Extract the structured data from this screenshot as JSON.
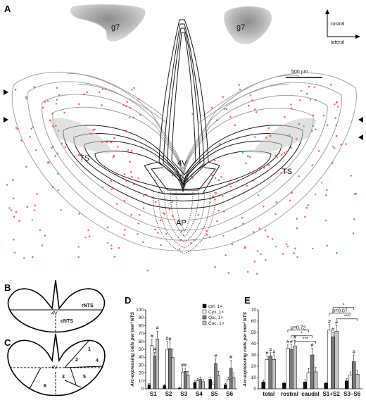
{
  "panel_a": {
    "label": "A",
    "g7_left": "g7",
    "g7_right": "g7",
    "rostral": "rostral",
    "lateral": "lateral",
    "scale_bar": "500 µm",
    "ts_left": "TS",
    "ts_right": "TS",
    "fourth_ventricle": "4V",
    "area_postrema": "AP"
  },
  "panel_b": {
    "label": "B",
    "rnts": "rNTS",
    "cnts": "cNTS",
    "v4": "4V"
  },
  "panel_c": {
    "label": "C",
    "v4": "4V",
    "regions": [
      "1",
      "2",
      "3",
      "4",
      "5",
      "6"
    ]
  },
  "colors": {
    "ctrl": "#111111",
    "cyx": "#ffffff",
    "qui": "#7a7a7a",
    "cuc": "#c4c4c4",
    "red_dots": "#e0403a",
    "green_dots": "#3aa04a"
  },
  "chart_data": [
    {
      "panel": "D",
      "type": "bar",
      "ylabel": "Arc-expressing cells per mm² NTS",
      "ylim": [
        0,
        100
      ],
      "yticks": [
        "0",
        "10",
        "20",
        "30",
        "40",
        "50",
        "60",
        "70",
        "80",
        "90",
        "100"
      ],
      "categories": [
        "S1",
        "S2",
        "S3",
        "S4",
        "S5",
        "S6"
      ],
      "series": [
        {
          "name": "ctrl, 1×",
          "values": [
            5,
            4,
            1,
            8,
            12,
            5
          ],
          "errors": [
            1.5,
            1.5,
            1,
            2,
            3,
            2
          ]
        },
        {
          "name": "Cyx, 1×",
          "values": [
            55,
            50,
            21,
            10,
            6,
            12
          ],
          "errors": [
            8,
            10,
            5,
            3,
            2,
            3
          ]
        },
        {
          "name": "Qui, 1×",
          "values": [
            41,
            51,
            22,
            12,
            32,
            26
          ],
          "errors": [
            5,
            8,
            4,
            3,
            6,
            10
          ]
        },
        {
          "name": "Cuc, 1×",
          "values": [
            63,
            40,
            17,
            9,
            17,
            14
          ],
          "errors": [
            10,
            10,
            5,
            3,
            5,
            6
          ]
        }
      ],
      "significance": [
        "#",
        "#",
        "#",
        "#",
        "#",
        "#",
        "#",
        "#",
        "#"
      ]
    },
    {
      "panel": "E",
      "type": "bar",
      "ylabel": "Arc-expressing cells per mm² NTS",
      "ylim": [
        0,
        70
      ],
      "yticks": [
        "0",
        "10",
        "20",
        "30",
        "40",
        "50",
        "60",
        "70"
      ],
      "categories": [
        "total",
        "rostral",
        "caudal",
        "S1+S2",
        "S3–S6"
      ],
      "series": [
        {
          "name": "ctrl, 1×",
          "values": [
            6,
            5,
            6,
            5,
            7
          ],
          "errors": [
            1.5,
            1,
            2,
            1,
            2
          ]
        },
        {
          "name": "Cyx, 1×",
          "values": [
            26,
            36,
            14,
            52,
            12
          ],
          "errors": [
            3,
            3,
            4,
            5,
            3
          ]
        },
        {
          "name": "Qui, 1×",
          "values": [
            29,
            35,
            30,
            46,
            24
          ],
          "errors": [
            3,
            4,
            6,
            4,
            6
          ]
        },
        {
          "name": "Cuc, 1×",
          "values": [
            26,
            38,
            15,
            51,
            13
          ],
          "errors": [
            4,
            5,
            4,
            5,
            3
          ]
        }
      ],
      "comparisons": [
        "p=0.72",
        "*",
        "***",
        "p=0.07",
        "*",
        "***"
      ],
      "significance": [
        "#",
        "#",
        "#",
        "#",
        "#",
        "#",
        "#",
        "#",
        "#",
        "#",
        "#"
      ]
    }
  ]
}
